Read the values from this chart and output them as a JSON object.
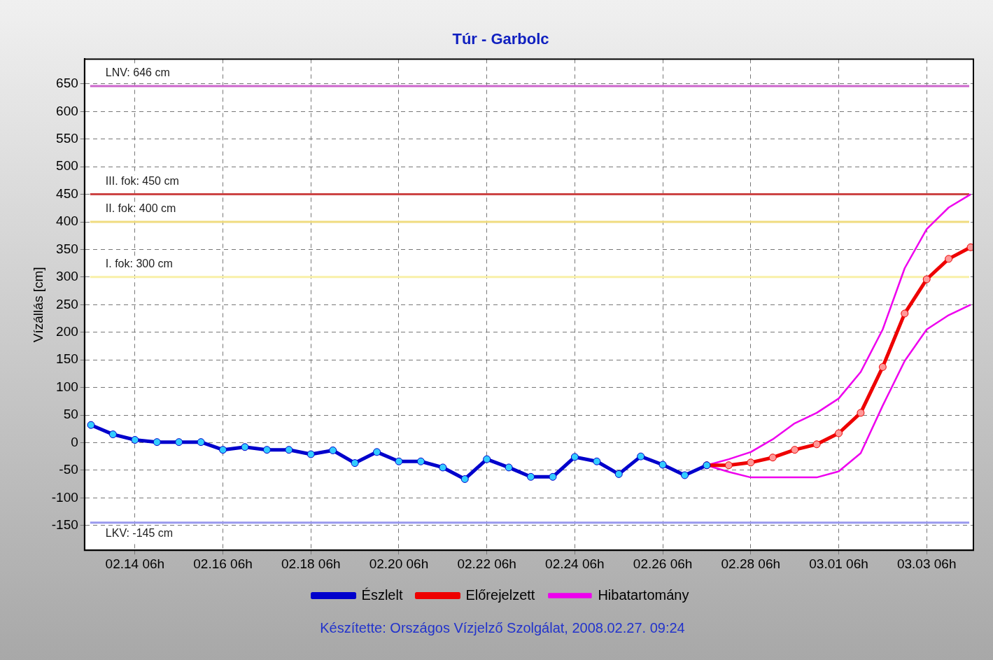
{
  "chart_data": {
    "type": "line",
    "title": "Túr - Garbolc",
    "ylabel": "Vízállás [cm]",
    "xlim": [
      "2008-02-13T02:30",
      "2008-03-04T07:30"
    ],
    "xticks": [
      {
        "value": "2008-02-14T06:00",
        "label": "02.14 06h"
      },
      {
        "value": "2008-02-16T06:00",
        "label": "02.16 06h"
      },
      {
        "value": "2008-02-18T06:00",
        "label": "02.18 06h"
      },
      {
        "value": "2008-02-20T06:00",
        "label": "02.20 06h"
      },
      {
        "value": "2008-02-22T06:00",
        "label": "02.22 06h"
      },
      {
        "value": "2008-02-24T06:00",
        "label": "02.24 06h"
      },
      {
        "value": "2008-02-26T06:00",
        "label": "02.26 06h"
      },
      {
        "value": "2008-02-28T06:00",
        "label": "02.28 06h"
      },
      {
        "value": "2008-03-01T06:00",
        "label": "03.01 06h"
      },
      {
        "value": "2008-03-03T06:00",
        "label": "03.03 06h"
      }
    ],
    "ylim": [
      -195,
      695
    ],
    "yticks": [
      -150,
      -100,
      -50,
      0,
      50,
      100,
      150,
      200,
      250,
      300,
      350,
      400,
      450,
      500,
      550,
      600,
      650
    ],
    "grid": true,
    "legend": "bottom",
    "marker": "circle",
    "line_style": "solid",
    "series": [
      {
        "name": "Észlelt",
        "color": "#0000cc",
        "x": [
          "2008-02-13T06:00",
          "2008-02-13T18:00",
          "2008-02-14T06:00",
          "2008-02-14T18:00",
          "2008-02-15T06:00",
          "2008-02-15T18:00",
          "2008-02-16T06:00",
          "2008-02-16T18:00",
          "2008-02-17T06:00",
          "2008-02-17T18:00",
          "2008-02-18T06:00",
          "2008-02-18T18:00",
          "2008-02-19T06:00",
          "2008-02-19T18:00",
          "2008-02-20T06:00",
          "2008-02-20T18:00",
          "2008-02-21T06:00",
          "2008-02-21T18:00",
          "2008-02-22T06:00",
          "2008-02-22T18:00",
          "2008-02-23T06:00",
          "2008-02-23T18:00",
          "2008-02-24T06:00",
          "2008-02-24T18:00",
          "2008-02-25T06:00",
          "2008-02-25T18:00",
          "2008-02-26T06:00",
          "2008-02-26T18:00",
          "2008-02-27T06:00"
        ],
        "values": [
          32,
          15,
          5,
          1,
          1,
          1,
          -13,
          -8,
          -13,
          -13,
          -21,
          -14,
          -37,
          -17,
          -34,
          -34,
          -45,
          -66,
          -30,
          -45,
          -62,
          -62,
          -26,
          -34,
          -57,
          -25,
          -40,
          -59,
          -41
        ]
      },
      {
        "name": "Előrejelzett",
        "color": "#ee0000",
        "x": [
          "2008-02-27T06:00",
          "2008-02-27T18:00",
          "2008-02-28T06:00",
          "2008-02-28T18:00",
          "2008-02-29T06:00",
          "2008-02-29T18:00",
          "2008-03-01T06:00",
          "2008-03-01T18:00",
          "2008-03-02T06:00",
          "2008-03-02T18:00",
          "2008-03-03T06:00",
          "2008-03-03T18:00",
          "2008-03-04T06:00"
        ],
        "values": [
          -41,
          -41,
          -36,
          -27,
          -13,
          -3,
          17,
          54,
          137,
          234,
          296,
          333,
          354
        ]
      },
      {
        "name": "Hibatartomány",
        "color": "#ee00ee",
        "marker": "none",
        "x": [
          "2008-02-27T06:00",
          "2008-02-27T18:00",
          "2008-02-28T06:00",
          "2008-02-28T18:00",
          "2008-02-29T06:00",
          "2008-02-29T18:00",
          "2008-03-01T06:00",
          "2008-03-01T18:00",
          "2008-03-02T06:00",
          "2008-03-02T18:00",
          "2008-03-03T06:00",
          "2008-03-03T18:00",
          "2008-03-04T06:00"
        ],
        "values": [
          -41,
          -30,
          -17,
          6,
          35,
          54,
          80,
          128,
          205,
          316,
          387,
          426,
          450
        ]
      },
      {
        "color": "#ee00ee",
        "marker": "none",
        "x": [
          "2008-02-27T06:00",
          "2008-02-27T18:00",
          "2008-02-28T06:00",
          "2008-02-28T18:00",
          "2008-02-29T06:00",
          "2008-02-29T18:00",
          "2008-03-01T06:00",
          "2008-03-01T18:00",
          "2008-03-02T06:00",
          "2008-03-02T18:00",
          "2008-03-03T06:00",
          "2008-03-03T18:00",
          "2008-03-04T06:00"
        ],
        "values": [
          -41,
          -53,
          -63,
          -63,
          -63,
          -63,
          -52,
          -19,
          67,
          148,
          205,
          231,
          250
        ]
      }
    ],
    "ref_lines": [
      {
        "axis": "y",
        "value": 646,
        "label": "LNV: 646 cm",
        "color": "#cc66cc"
      },
      {
        "axis": "y",
        "value": 450,
        "label": "III. fok: 450 cm",
        "color": "#cc4444"
      },
      {
        "axis": "y",
        "value": 400,
        "label": "II. fok: 400 cm",
        "color": "#f0dc80"
      },
      {
        "axis": "y",
        "value": 300,
        "label": "I. fok: 300 cm",
        "color": "#f8f0a8"
      },
      {
        "axis": "y",
        "value": -145,
        "label": "LKV: -145 cm",
        "color": "#9999ee"
      }
    ],
    "annotations": [
      "Készítette: Országos Vízjelző Szolgálat, 2008.02.27. 09:24"
    ]
  }
}
